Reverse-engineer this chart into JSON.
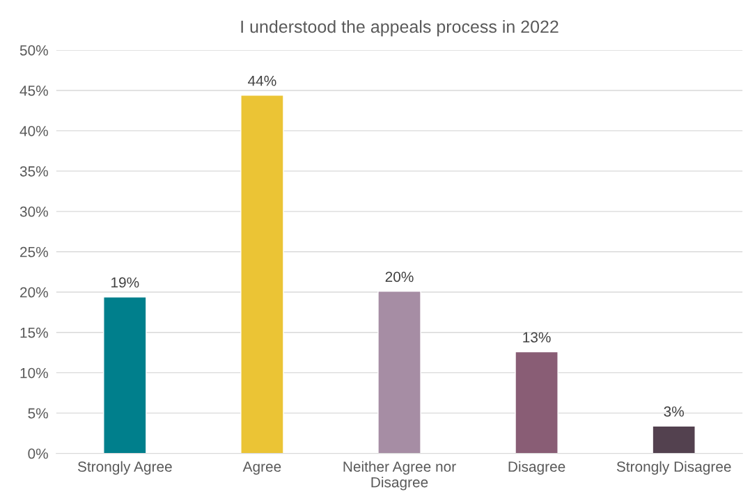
{
  "chart_data": {
    "type": "bar",
    "title": "I understood the appeals process in 2022",
    "categories": [
      "Strongly Agree",
      "Agree",
      "Neither Agree nor\nDisagree",
      "Disagree",
      "Strongly Disagree"
    ],
    "values": [
      19.4,
      44.4,
      20.1,
      12.6,
      3.4
    ],
    "value_labels": [
      "19%",
      "44%",
      "20%",
      "13%",
      "3%"
    ],
    "colors": [
      "#007f8c",
      "#ebc435",
      "#a68da4",
      "#895d75",
      "#53414f"
    ],
    "ylim": [
      0,
      50
    ],
    "yticks": [
      {
        "value": 0,
        "label": "0%"
      },
      {
        "value": 5,
        "label": "5%"
      },
      {
        "value": 10,
        "label": "10%"
      },
      {
        "value": 15,
        "label": "15%"
      },
      {
        "value": 20,
        "label": "20%"
      },
      {
        "value": 25,
        "label": "25%"
      },
      {
        "value": 30,
        "label": "30%"
      },
      {
        "value": 35,
        "label": "35%"
      },
      {
        "value": 40,
        "label": "40%"
      },
      {
        "value": 45,
        "label": "45%"
      },
      {
        "value": 50,
        "label": "50%"
      }
    ],
    "grid": "y",
    "legend": false
  }
}
